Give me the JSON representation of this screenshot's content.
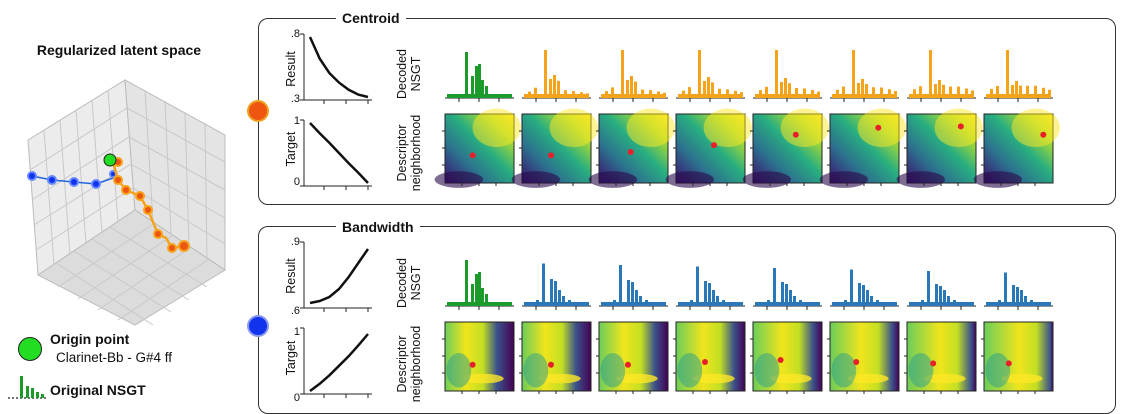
{
  "left": {
    "title": "Regularized latent space",
    "legend": {
      "origin_label": "Origin point",
      "origin_sub": "Clarinet-Bb - G#4 ff",
      "nsgt_label": "Original NSGT",
      "origin_color": "#22dd22"
    }
  },
  "panels": [
    {
      "id": "centroid",
      "title": "Centroid",
      "dot_color": "#ee5511",
      "dot_ring": "#f0a020",
      "series_color": "#f5a31a",
      "labels": {
        "result": "Result",
        "target": "Target",
        "decoded": [
          "Decoded",
          "NSGT"
        ],
        "descriptor": [
          "Descriptor",
          "neighborhood"
        ]
      },
      "result_ticks": [
        ".8",
        ".3"
      ],
      "target_ticks": [
        "1",
        "0"
      ],
      "result_curve": [
        0.8,
        0.62,
        0.5,
        0.42,
        0.36,
        0.32,
        0.3
      ],
      "target_curve": [
        1.0,
        0.83,
        0.67,
        0.5,
        0.33,
        0.17,
        0.0
      ],
      "red_points": [
        [
          0.4,
          0.6
        ],
        [
          0.42,
          0.6
        ],
        [
          0.46,
          0.55
        ],
        [
          0.55,
          0.45
        ],
        [
          0.62,
          0.3
        ],
        [
          0.7,
          0.2
        ],
        [
          0.78,
          0.18
        ],
        [
          0.86,
          0.3
        ]
      ]
    },
    {
      "id": "bandwidth",
      "title": "Bandwidth",
      "dot_color": "#1133ee",
      "dot_ring": "#8899ee",
      "series_color": "#2a78b8",
      "labels": {
        "result": "Result",
        "target": "Target",
        "decoded": [
          "Decoded",
          "NSGT"
        ],
        "descriptor": [
          "Descriptor",
          "neighborhood"
        ]
      },
      "result_ticks": [
        ".9",
        ".6"
      ],
      "target_ticks": [
        "1",
        "0"
      ],
      "result_curve": [
        0.61,
        0.62,
        0.64,
        0.68,
        0.74,
        0.81,
        0.88
      ],
      "target_curve": [
        0.0,
        0.12,
        0.26,
        0.42,
        0.58,
        0.76,
        0.95
      ],
      "red_points": [
        [
          0.4,
          0.62
        ],
        [
          0.42,
          0.62
        ],
        [
          0.42,
          0.62
        ],
        [
          0.42,
          0.58
        ],
        [
          0.4,
          0.55
        ],
        [
          0.38,
          0.58
        ],
        [
          0.38,
          0.6
        ],
        [
          0.36,
          0.6
        ]
      ]
    }
  ]
}
